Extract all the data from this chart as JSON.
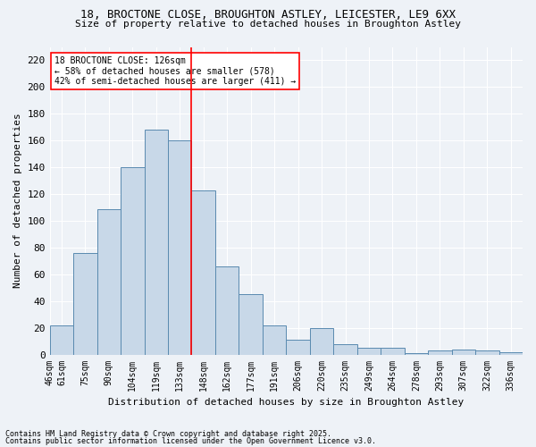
{
  "title1": "18, BROCTONE CLOSE, BROUGHTON ASTLEY, LEICESTER, LE9 6XX",
  "title2": "Size of property relative to detached houses in Broughton Astley",
  "xlabel": "Distribution of detached houses by size in Broughton Astley",
  "ylabel": "Number of detached properties",
  "bar_labels": [
    "46sqm",
    "61sqm",
    "75sqm",
    "90sqm",
    "104sqm",
    "119sqm",
    "133sqm",
    "148sqm",
    "162sqm",
    "177sqm",
    "191sqm",
    "206sqm",
    "220sqm",
    "235sqm",
    "249sqm",
    "264sqm",
    "278sqm",
    "293sqm",
    "307sqm",
    "322sqm",
    "336sqm"
  ],
  "values": [
    22,
    76,
    109,
    140,
    168,
    160,
    123,
    66,
    45,
    22,
    11,
    20,
    8,
    5,
    5,
    1,
    3,
    4,
    3,
    2
  ],
  "bar_color": "#c8d8e8",
  "bar_edge_color": "#5a8ab0",
  "vline_x": 5.5,
  "vline_color": "red",
  "annotation_line1": "18 BROCTONE CLOSE: 126sqm",
  "annotation_line2": "← 58% of detached houses are smaller (578)",
  "annotation_line3": "42% of semi-detached houses are larger (411) →",
  "annotation_box_color": "white",
  "annotation_box_edge": "red",
  "ylim": [
    0,
    230
  ],
  "yticks": [
    0,
    20,
    40,
    60,
    80,
    100,
    120,
    140,
    160,
    180,
    200,
    220
  ],
  "footnote1": "Contains HM Land Registry data © Crown copyright and database right 2025.",
  "footnote2": "Contains public sector information licensed under the Open Government Licence v3.0.",
  "bg_color": "#eef2f7",
  "plot_bg_color": "#eef2f7"
}
